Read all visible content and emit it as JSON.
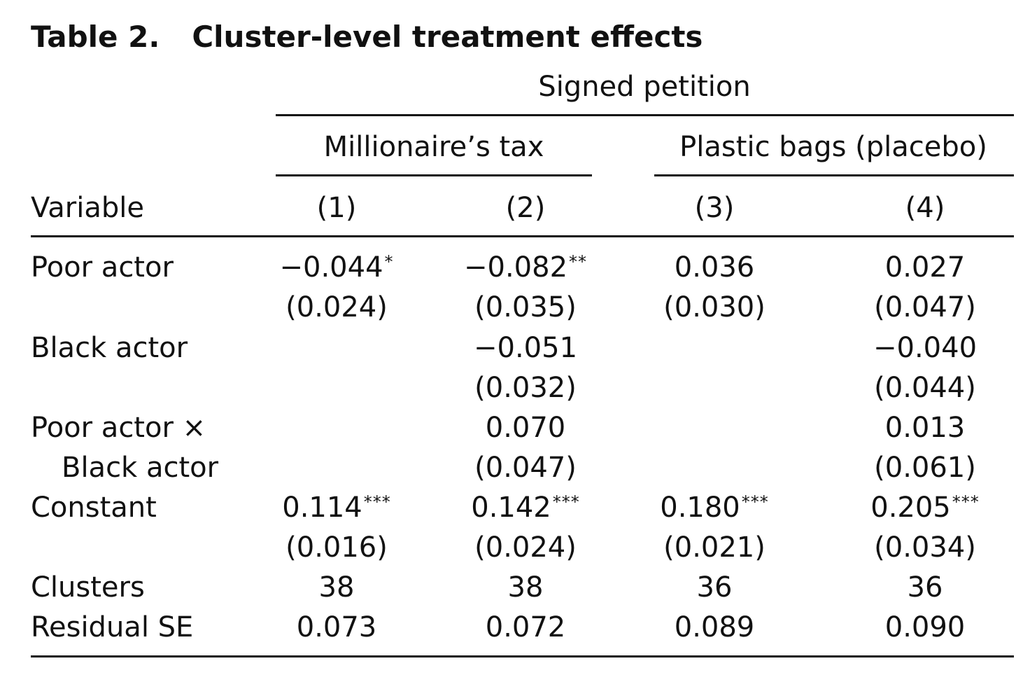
{
  "table": {
    "number": "Table 2.",
    "title": "Cluster-level treatment effects",
    "spanner": "Signed petition",
    "groups": [
      "Millionaire’s tax",
      "Plastic bags (placebo)"
    ],
    "variable_header": "Variable",
    "columns": [
      "(1)",
      "(2)",
      "(3)",
      "(4)"
    ],
    "rows": [
      {
        "label": "Poor actor",
        "label2": "",
        "coef": [
          {
            "value": "−0.044",
            "stars": "*"
          },
          {
            "value": "−0.082",
            "stars": "**"
          },
          {
            "value": "0.036",
            "stars": ""
          },
          {
            "value": "0.027",
            "stars": ""
          }
        ],
        "se": [
          "(0.024)",
          "(0.035)",
          "(0.030)",
          "(0.047)"
        ]
      },
      {
        "label": "Black actor",
        "label2": "",
        "coef": [
          {
            "value": "",
            "stars": ""
          },
          {
            "value": "−0.051",
            "stars": ""
          },
          {
            "value": "",
            "stars": ""
          },
          {
            "value": "−0.040",
            "stars": ""
          }
        ],
        "se": [
          "",
          "(0.032)",
          "",
          "(0.044)"
        ]
      },
      {
        "label": "Poor actor ×",
        "label2": "Black actor",
        "coef": [
          {
            "value": "",
            "stars": ""
          },
          {
            "value": "0.070",
            "stars": ""
          },
          {
            "value": "",
            "stars": ""
          },
          {
            "value": "0.013",
            "stars": ""
          }
        ],
        "se": [
          "",
          "(0.047)",
          "",
          "(0.061)"
        ]
      },
      {
        "label": "Constant",
        "label2": "",
        "coef": [
          {
            "value": "0.114",
            "stars": "***"
          },
          {
            "value": "0.142",
            "stars": "***"
          },
          {
            "value": "0.180",
            "stars": "***"
          },
          {
            "value": "0.205",
            "stars": "***"
          }
        ],
        "se": [
          "(0.016)",
          "(0.024)",
          "(0.021)",
          "(0.034)"
        ]
      }
    ],
    "stats": [
      {
        "label": "Clusters",
        "values": [
          "38",
          "38",
          "36",
          "36"
        ]
      },
      {
        "label": "Residual SE",
        "values": [
          "0.073",
          "0.072",
          "0.089",
          "0.090"
        ]
      }
    ]
  }
}
